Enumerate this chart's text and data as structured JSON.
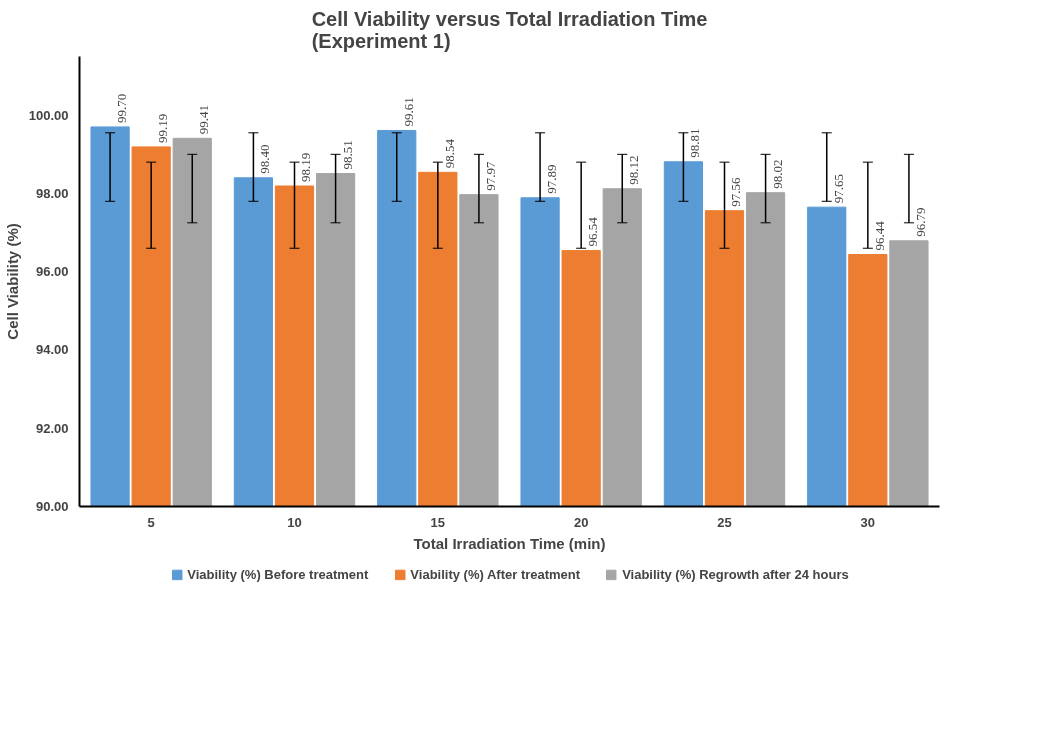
{
  "chart_data": {
    "type": "bar",
    "title": "Cell Viability versus Total Irradiation Time\n(Experiment 1)",
    "xlabel": "Total Irradiation Time (min)",
    "ylabel": "Cell Viability (%)",
    "categories": [
      "5",
      "10",
      "15",
      "20",
      "25",
      "30"
    ],
    "series": [
      {
        "name": "Viability (%) Before treatment",
        "color": "#5b9bd5",
        "values": [
          99.7,
          98.4,
          99.61,
          97.89,
          98.81,
          97.65
        ],
        "value_labels": [
          "99.70",
          "98.40",
          "99.61",
          "97.89",
          "98.81",
          "97.65"
        ],
        "errors": [
          [
            97.8,
            99.55
          ],
          [
            97.8,
            99.55
          ],
          [
            97.8,
            99.55
          ],
          [
            97.8,
            99.55
          ],
          [
            97.8,
            99.55
          ],
          [
            97.8,
            99.55
          ]
        ]
      },
      {
        "name": "Viability (%) After treatment",
        "color": "#ed7d31",
        "values": [
          99.19,
          98.19,
          98.54,
          96.54,
          97.56,
          96.44
        ],
        "value_labels": [
          "99.19",
          "98.19",
          "98.54",
          "96.54",
          "97.56",
          "96.44"
        ],
        "errors": [
          [
            96.6,
            98.8
          ],
          [
            96.6,
            98.8
          ],
          [
            96.6,
            98.8
          ],
          [
            96.6,
            98.8
          ],
          [
            96.6,
            98.8
          ],
          [
            96.6,
            98.8
          ]
        ]
      },
      {
        "name": "Viability (%) Regrowth after 24 hours",
        "color": "#a5a5a5",
        "values": [
          99.41,
          98.51,
          97.97,
          98.12,
          98.02,
          96.79
        ],
        "value_labels": [
          "99.41",
          "98.51",
          "97.97",
          "98.12",
          "98.02",
          "96.79"
        ],
        "errors": [
          [
            97.25,
            99.0
          ],
          [
            97.25,
            99.0
          ],
          [
            97.25,
            99.0
          ],
          [
            97.25,
            99.0
          ],
          [
            97.25,
            99.0
          ],
          [
            97.25,
            99.0
          ]
        ]
      }
    ],
    "ylim": [
      90,
      101.5
    ],
    "yticks": [
      {
        "value": 90,
        "label": "90.00"
      },
      {
        "value": 92,
        "label": "92.00"
      },
      {
        "value": 94,
        "label": "94.00"
      },
      {
        "value": 96,
        "label": "96.00"
      },
      {
        "value": 98,
        "label": "98.00"
      },
      {
        "value": 100,
        "label": "100.00"
      }
    ],
    "grid": false,
    "legend": "bottom"
  }
}
